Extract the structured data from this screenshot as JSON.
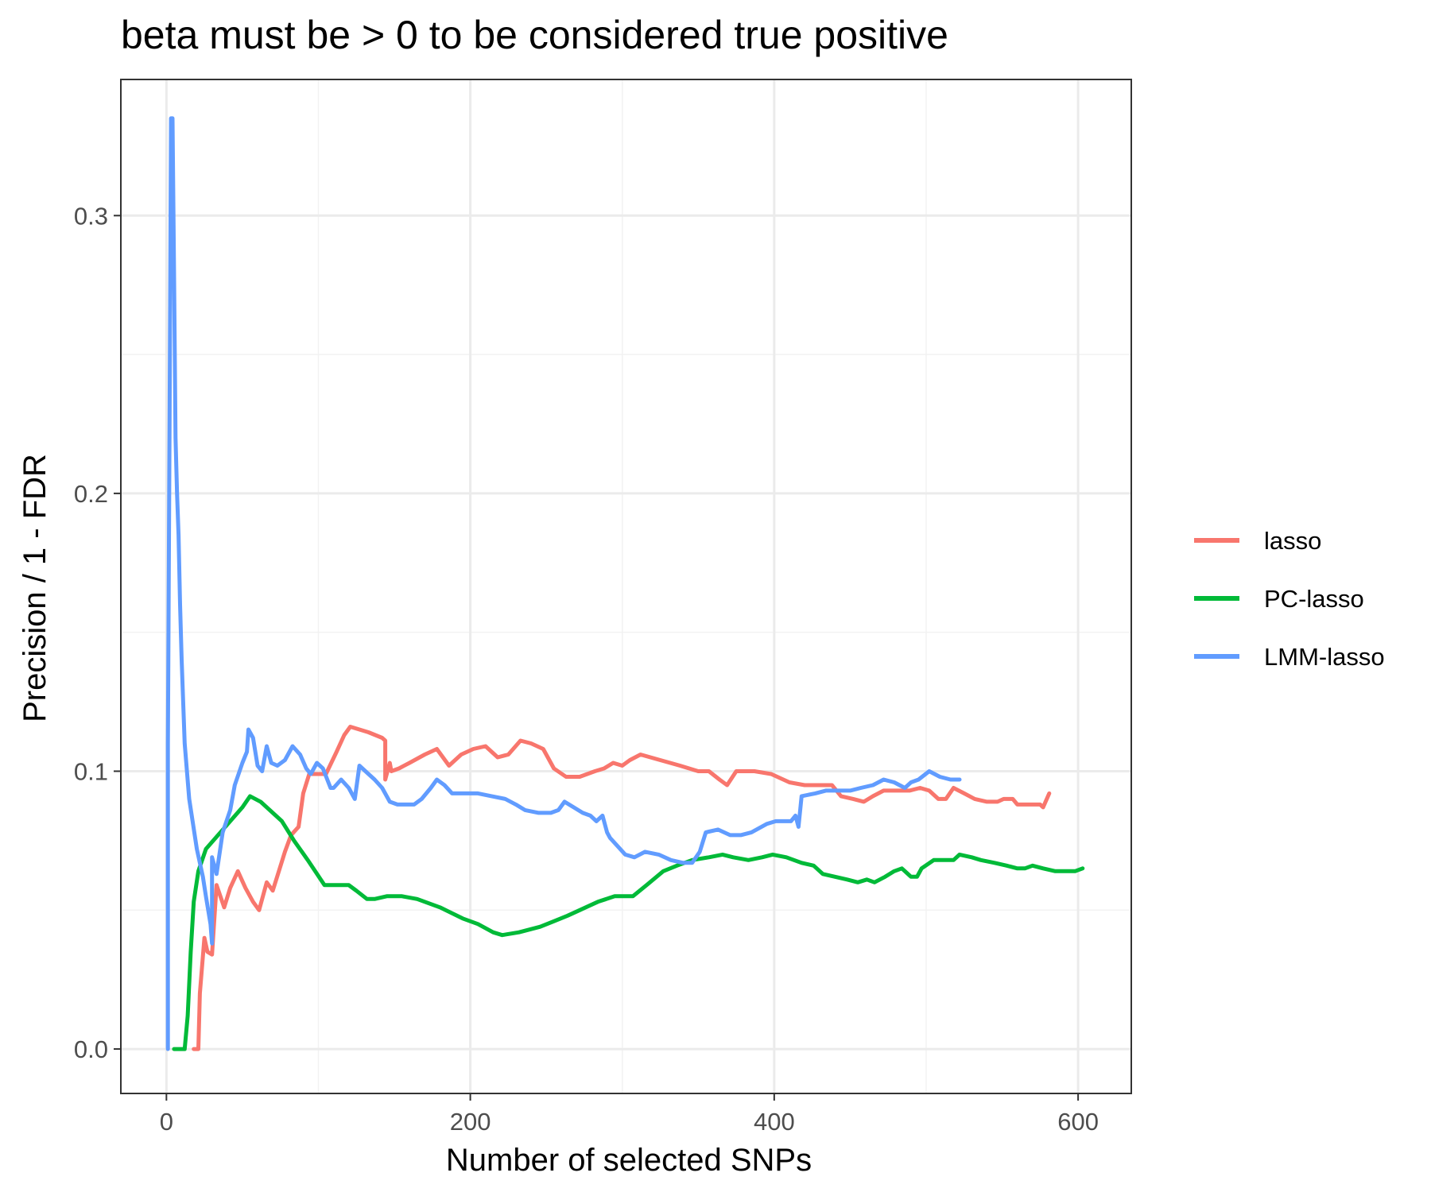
{
  "chart_data": {
    "type": "line",
    "title": "beta must be > 0 to be considered true positive",
    "xlabel": "Number of selected SNPs",
    "ylabel": "Precision / 1 - FDR",
    "xlim": [
      -30,
      635
    ],
    "ylim": [
      -0.016,
      0.349
    ],
    "x_ticks": [
      0,
      200,
      400,
      600
    ],
    "x_tick_labels": [
      "0",
      "200",
      "400",
      "600"
    ],
    "y_ticks": [
      0.0,
      0.1,
      0.2,
      0.3
    ],
    "y_tick_labels": [
      "0.0",
      "0.1",
      "0.2",
      "0.3"
    ],
    "grid": true,
    "legend_position": "right",
    "series": [
      {
        "name": "lasso",
        "color": "#F8766D",
        "points": [
          [
            18,
            0
          ],
          [
            21,
            0
          ],
          [
            22,
            0.02
          ],
          [
            25,
            0.04
          ],
          [
            27,
            0.035
          ],
          [
            30,
            0.034
          ],
          [
            33,
            0.059
          ],
          [
            38,
            0.051
          ],
          [
            42,
            0.058
          ],
          [
            47,
            0.064
          ],
          [
            52,
            0.058
          ],
          [
            57,
            0.053
          ],
          [
            61,
            0.05
          ],
          [
            66,
            0.06
          ],
          [
            70,
            0.057
          ],
          [
            74,
            0.064
          ],
          [
            78,
            0.071
          ],
          [
            82,
            0.077
          ],
          [
            87,
            0.08
          ],
          [
            90,
            0.092
          ],
          [
            94,
            0.099
          ],
          [
            98,
            0.099
          ],
          [
            105,
            0.099
          ],
          [
            112,
            0.107
          ],
          [
            117,
            0.113
          ],
          [
            121,
            0.116
          ],
          [
            127,
            0.115
          ],
          [
            133,
            0.114
          ],
          [
            142,
            0.112
          ],
          [
            144,
            0.111
          ],
          [
            144,
            0.097
          ],
          [
            147,
            0.103
          ],
          [
            148,
            0.1
          ],
          [
            153,
            0.101
          ],
          [
            160,
            0.103
          ],
          [
            170,
            0.106
          ],
          [
            178,
            0.108
          ],
          [
            186,
            0.102
          ],
          [
            194,
            0.106
          ],
          [
            202,
            0.108
          ],
          [
            210,
            0.109
          ],
          [
            218,
            0.105
          ],
          [
            225,
            0.106
          ],
          [
            233,
            0.111
          ],
          [
            240,
            0.11
          ],
          [
            248,
            0.108
          ],
          [
            255,
            0.101
          ],
          [
            263,
            0.098
          ],
          [
            272,
            0.098
          ],
          [
            282,
            0.1
          ],
          [
            288,
            0.101
          ],
          [
            294,
            0.103
          ],
          [
            300,
            0.102
          ],
          [
            305,
            0.104
          ],
          [
            312,
            0.106
          ],
          [
            325,
            0.104
          ],
          [
            338,
            0.102
          ],
          [
            350,
            0.1
          ],
          [
            357,
            0.1
          ],
          [
            364,
            0.097
          ],
          [
            369,
            0.095
          ],
          [
            375,
            0.1
          ],
          [
            387,
            0.1
          ],
          [
            398,
            0.099
          ],
          [
            410,
            0.096
          ],
          [
            420,
            0.095
          ],
          [
            430,
            0.095
          ],
          [
            438,
            0.095
          ],
          [
            444,
            0.091
          ],
          [
            452,
            0.09
          ],
          [
            459,
            0.089
          ],
          [
            465,
            0.091
          ],
          [
            472,
            0.093
          ],
          [
            480,
            0.093
          ],
          [
            489,
            0.093
          ],
          [
            496,
            0.094
          ],
          [
            502,
            0.093
          ],
          [
            508,
            0.09
          ],
          [
            513,
            0.09
          ],
          [
            518,
            0.094
          ],
          [
            525,
            0.092
          ],
          [
            532,
            0.09
          ],
          [
            540,
            0.089
          ],
          [
            545,
            0.089
          ],
          [
            547,
            0.089
          ],
          [
            551,
            0.09
          ],
          [
            557,
            0.09
          ],
          [
            560,
            0.088
          ],
          [
            565,
            0.088
          ],
          [
            570,
            0.088
          ],
          [
            575,
            0.088
          ],
          [
            577,
            0.087
          ],
          [
            581,
            0.092
          ]
        ]
      },
      {
        "name": "PC-lasso",
        "color": "#00BA38",
        "points": [
          [
            5,
            0
          ],
          [
            12,
            0
          ],
          [
            14,
            0.012
          ],
          [
            16,
            0.035
          ],
          [
            18,
            0.053
          ],
          [
            21,
            0.064
          ],
          [
            26,
            0.072
          ],
          [
            34,
            0.077
          ],
          [
            42,
            0.082
          ],
          [
            50,
            0.087
          ],
          [
            55,
            0.091
          ],
          [
            62,
            0.089
          ],
          [
            68,
            0.086
          ],
          [
            76,
            0.082
          ],
          [
            84,
            0.075
          ],
          [
            93,
            0.068
          ],
          [
            104,
            0.059
          ],
          [
            115,
            0.059
          ],
          [
            120,
            0.059
          ],
          [
            125,
            0.057
          ],
          [
            132,
            0.054
          ],
          [
            137,
            0.054
          ],
          [
            145,
            0.055
          ],
          [
            155,
            0.055
          ],
          [
            165,
            0.054
          ],
          [
            180,
            0.051
          ],
          [
            195,
            0.047
          ],
          [
            205,
            0.045
          ],
          [
            215,
            0.042
          ],
          [
            221,
            0.041
          ],
          [
            232,
            0.042
          ],
          [
            246,
            0.044
          ],
          [
            255,
            0.046
          ],
          [
            264,
            0.048
          ],
          [
            272,
            0.05
          ],
          [
            284,
            0.053
          ],
          [
            295,
            0.055
          ],
          [
            307,
            0.055
          ],
          [
            316,
            0.059
          ],
          [
            327,
            0.064
          ],
          [
            336,
            0.066
          ],
          [
            346,
            0.068
          ],
          [
            357,
            0.069
          ],
          [
            366,
            0.07
          ],
          [
            373,
            0.069
          ],
          [
            383,
            0.068
          ],
          [
            392,
            0.069
          ],
          [
            399,
            0.07
          ],
          [
            408,
            0.069
          ],
          [
            418,
            0.067
          ],
          [
            426,
            0.066
          ],
          [
            432,
            0.063
          ],
          [
            440,
            0.062
          ],
          [
            448,
            0.061
          ],
          [
            455,
            0.06
          ],
          [
            461,
            0.061
          ],
          [
            466,
            0.06
          ],
          [
            473,
            0.062
          ],
          [
            479,
            0.064
          ],
          [
            484,
            0.065
          ],
          [
            490,
            0.062
          ],
          [
            494,
            0.062
          ],
          [
            497,
            0.065
          ],
          [
            505,
            0.068
          ],
          [
            512,
            0.068
          ],
          [
            518,
            0.068
          ],
          [
            522,
            0.07
          ],
          [
            530,
            0.069
          ],
          [
            536,
            0.068
          ],
          [
            545,
            0.067
          ],
          [
            553,
            0.066
          ],
          [
            560,
            0.065
          ],
          [
            565,
            0.065
          ],
          [
            570,
            0.066
          ],
          [
            577,
            0.065
          ],
          [
            585,
            0.064
          ],
          [
            593,
            0.064
          ],
          [
            598,
            0.064
          ],
          [
            603,
            0.065
          ]
        ]
      },
      {
        "name": "LMM-lasso",
        "color": "#619CFF",
        "points": [
          [
            1,
            0
          ],
          [
            1,
            0.11
          ],
          [
            2,
            0.22
          ],
          [
            3,
            0.335
          ],
          [
            4,
            0.335
          ],
          [
            5,
            0.28
          ],
          [
            6,
            0.22
          ],
          [
            7,
            0.2
          ],
          [
            8,
            0.185
          ],
          [
            9,
            0.16
          ],
          [
            10,
            0.14
          ],
          [
            12,
            0.11
          ],
          [
            15,
            0.09
          ],
          [
            20,
            0.072
          ],
          [
            24,
            0.062
          ],
          [
            26,
            0.055
          ],
          [
            29,
            0.045
          ],
          [
            30,
            0.038
          ],
          [
            30,
            0.069
          ],
          [
            33,
            0.063
          ],
          [
            37,
            0.078
          ],
          [
            42,
            0.086
          ],
          [
            45,
            0.095
          ],
          [
            50,
            0.103
          ],
          [
            53,
            0.107
          ],
          [
            54,
            0.115
          ],
          [
            57,
            0.112
          ],
          [
            60,
            0.102
          ],
          [
            63,
            0.1
          ],
          [
            66,
            0.109
          ],
          [
            69,
            0.103
          ],
          [
            73,
            0.102
          ],
          [
            78,
            0.104
          ],
          [
            83,
            0.109
          ],
          [
            88,
            0.106
          ],
          [
            92,
            0.101
          ],
          [
            95,
            0.099
          ],
          [
            99,
            0.103
          ],
          [
            103,
            0.101
          ],
          [
            108,
            0.094
          ],
          [
            110,
            0.094
          ],
          [
            115,
            0.097
          ],
          [
            120,
            0.094
          ],
          [
            124,
            0.09
          ],
          [
            127,
            0.102
          ],
          [
            133,
            0.099
          ],
          [
            137,
            0.097
          ],
          [
            142,
            0.094
          ],
          [
            147,
            0.089
          ],
          [
            152,
            0.088
          ],
          [
            158,
            0.088
          ],
          [
            163,
            0.088
          ],
          [
            168,
            0.09
          ],
          [
            174,
            0.094
          ],
          [
            178,
            0.097
          ],
          [
            183,
            0.095
          ],
          [
            188,
            0.092
          ],
          [
            196,
            0.092
          ],
          [
            205,
            0.092
          ],
          [
            214,
            0.091
          ],
          [
            223,
            0.09
          ],
          [
            230,
            0.088
          ],
          [
            236,
            0.086
          ],
          [
            245,
            0.085
          ],
          [
            253,
            0.085
          ],
          [
            258,
            0.086
          ],
          [
            262,
            0.089
          ],
          [
            268,
            0.087
          ],
          [
            274,
            0.085
          ],
          [
            279,
            0.084
          ],
          [
            283,
            0.082
          ],
          [
            287,
            0.084
          ],
          [
            290,
            0.078
          ],
          [
            292,
            0.076
          ],
          [
            297,
            0.073
          ],
          [
            302,
            0.07
          ],
          [
            308,
            0.069
          ],
          [
            315,
            0.071
          ],
          [
            324,
            0.07
          ],
          [
            332,
            0.068
          ],
          [
            340,
            0.067
          ],
          [
            346,
            0.067
          ],
          [
            351,
            0.071
          ],
          [
            355,
            0.078
          ],
          [
            363,
            0.079
          ],
          [
            371,
            0.077
          ],
          [
            378,
            0.077
          ],
          [
            385,
            0.078
          ],
          [
            395,
            0.081
          ],
          [
            401,
            0.082
          ],
          [
            406,
            0.082
          ],
          [
            411,
            0.082
          ],
          [
            414,
            0.084
          ],
          [
            416,
            0.08
          ],
          [
            418,
            0.091
          ],
          [
            427,
            0.092
          ],
          [
            434,
            0.093
          ],
          [
            442,
            0.093
          ],
          [
            450,
            0.093
          ],
          [
            457,
            0.094
          ],
          [
            465,
            0.095
          ],
          [
            472,
            0.097
          ],
          [
            479,
            0.096
          ],
          [
            486,
            0.094
          ],
          [
            490,
            0.096
          ],
          [
            495,
            0.097
          ],
          [
            502,
            0.1
          ],
          [
            509,
            0.098
          ],
          [
            516,
            0.097
          ],
          [
            522,
            0.097
          ]
        ]
      }
    ]
  }
}
